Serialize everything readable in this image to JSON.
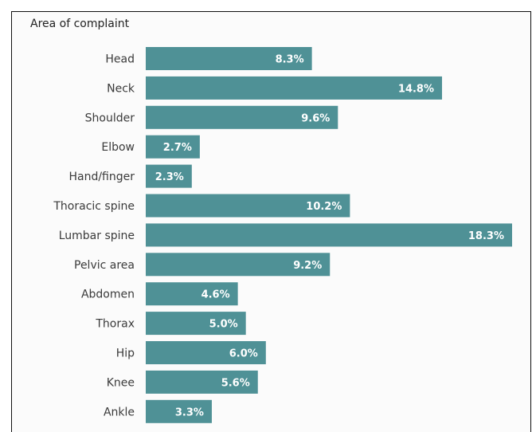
{
  "chart_data": {
    "type": "bar",
    "orientation": "horizontal",
    "title": "Area of complaint",
    "categories": [
      "Head",
      "Neck",
      "Shoulder",
      "Elbow",
      "Hand/finger",
      "Thoracic spine",
      "Lumbar spine",
      "Pelvic area",
      "Abdomen",
      "Thorax",
      "Hip",
      "Knee",
      "Ankle"
    ],
    "values": [
      8.3,
      14.8,
      9.6,
      2.7,
      2.3,
      10.2,
      18.3,
      9.2,
      4.6,
      5.0,
      6.0,
      5.6,
      3.3
    ],
    "value_labels": [
      "8.3%",
      "14.8%",
      "9.6%",
      "2.7%",
      "2.3%",
      "10.2%",
      "18.3%",
      "9.2%",
      "4.6%",
      "5.0%",
      "6.0%",
      "5.6%",
      "3.3%"
    ],
    "xlim": [
      0,
      18.3
    ],
    "grid": false,
    "legend": "none",
    "bar_color": "#4f9196"
  }
}
